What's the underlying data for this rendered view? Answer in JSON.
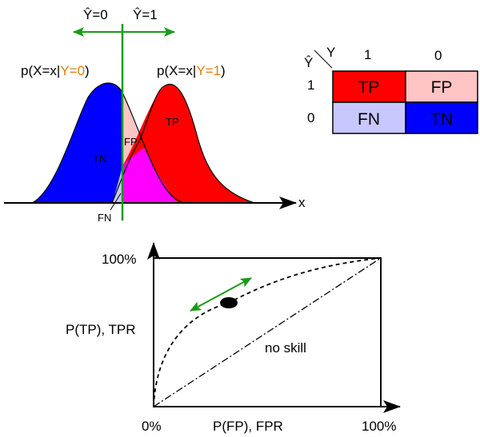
{
  "colors": {
    "green": "#1a9a1a",
    "orange": "#e87d0d",
    "tp": "#ff0000",
    "fp": "#ffc4c4",
    "fn": "#c8c8ff",
    "tn": "#0000ff",
    "overlap": "#ff00ff"
  },
  "threshold": {
    "left_label": "Ŷ=0",
    "right_label": "Ŷ=1"
  },
  "distributions": {
    "neg": {
      "prefix": "p(X=x|",
      "cond": "Y=0",
      "suffix": ")"
    },
    "pos": {
      "prefix": "p(X=x|",
      "cond": "Y=1",
      "suffix": ")"
    },
    "axis_label": "x",
    "region_tn": "TN",
    "region_fp": "FP",
    "region_tp": "TP",
    "region_fn": "FN"
  },
  "matrix": {
    "y_label": "Y",
    "yhat_label": "Ŷ",
    "col_labels": [
      "1",
      "0"
    ],
    "row_labels": [
      "1",
      "0"
    ],
    "cells": [
      [
        "TP",
        "FP"
      ],
      [
        "FN",
        "TN"
      ]
    ]
  },
  "roc": {
    "y_top": "100%",
    "y_title": "P(TP), TPR",
    "x_origin": "0%",
    "x_title": "P(FP), FPR",
    "x_end": "100%",
    "no_skill": "no skill"
  }
}
